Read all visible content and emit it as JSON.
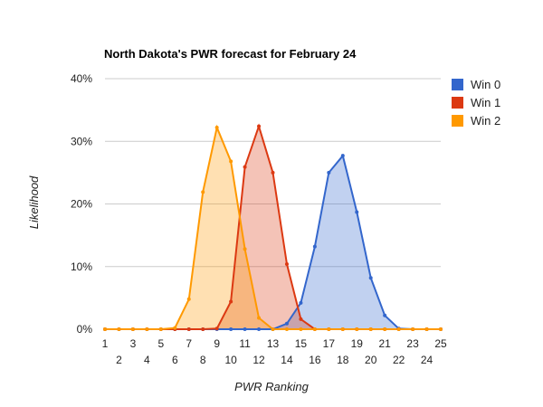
{
  "chart_data": {
    "type": "area",
    "title": "North Dakota's PWR forecast for February 24",
    "xlabel": "PWR Ranking",
    "ylabel": "Likelihood",
    "x": [
      1,
      2,
      3,
      4,
      5,
      6,
      7,
      8,
      9,
      10,
      11,
      12,
      13,
      14,
      15,
      16,
      17,
      18,
      19,
      20,
      21,
      22,
      23,
      24,
      25
    ],
    "xlim": [
      1,
      25
    ],
    "ylim": [
      0,
      40
    ],
    "yticks": [
      "0%",
      "10%",
      "20%",
      "30%",
      "40%"
    ],
    "grid": true,
    "legend_position": "right",
    "series": [
      {
        "name": "Win 0",
        "color": "#3366cc",
        "values": [
          0,
          0,
          0,
          0,
          0,
          0,
          0,
          0,
          0,
          0,
          0,
          0,
          0,
          0.9,
          4.2,
          13.2,
          25,
          27.7,
          18.7,
          8.2,
          2.2,
          0.1,
          0,
          0,
          0
        ]
      },
      {
        "name": "Win 1",
        "color": "#dc3912",
        "values": [
          0,
          0,
          0,
          0,
          0,
          0,
          0,
          0,
          0.1,
          4.4,
          25.9,
          32.4,
          25,
          10.4,
          1.6,
          0,
          0,
          0,
          0,
          0,
          0,
          0,
          0,
          0,
          0
        ]
      },
      {
        "name": "Win 2",
        "color": "#ff9900",
        "values": [
          0,
          0,
          0,
          0,
          0,
          0.2,
          4.8,
          21.9,
          32.2,
          26.8,
          12.8,
          1.8,
          0,
          0,
          0,
          0,
          0,
          0,
          0,
          0,
          0,
          0,
          0,
          0,
          0
        ]
      }
    ]
  }
}
